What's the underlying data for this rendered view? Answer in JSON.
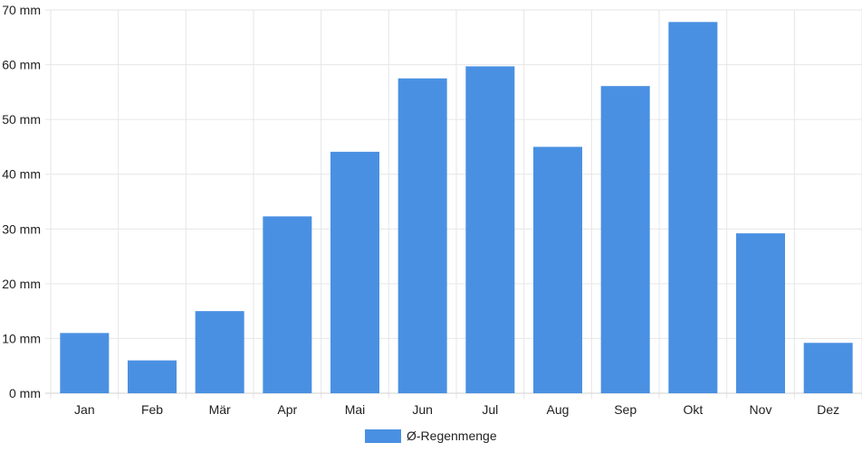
{
  "chart_data": {
    "type": "bar",
    "categories": [
      "Jan",
      "Feb",
      "Mär",
      "Apr",
      "Mai",
      "Jun",
      "Jul",
      "Aug",
      "Sep",
      "Okt",
      "Nov",
      "Dez"
    ],
    "series": [
      {
        "name": "Ø-Regenmenge",
        "values": [
          11,
          6,
          15,
          32.3,
          44.1,
          57.5,
          59.7,
          45,
          56.1,
          67.8,
          29.2,
          9.2
        ],
        "color": "#4a90e2"
      }
    ],
    "ylim": [
      0,
      70
    ],
    "yticks": [
      0,
      10,
      20,
      30,
      40,
      50,
      60,
      70
    ],
    "yunit": "mm",
    "ytick_labels": [
      "0 mm",
      "10 mm",
      "20 mm",
      "30 mm",
      "40 mm",
      "50 mm",
      "60 mm",
      "70 mm"
    ],
    "grid": true,
    "legend": "bottom-center"
  }
}
